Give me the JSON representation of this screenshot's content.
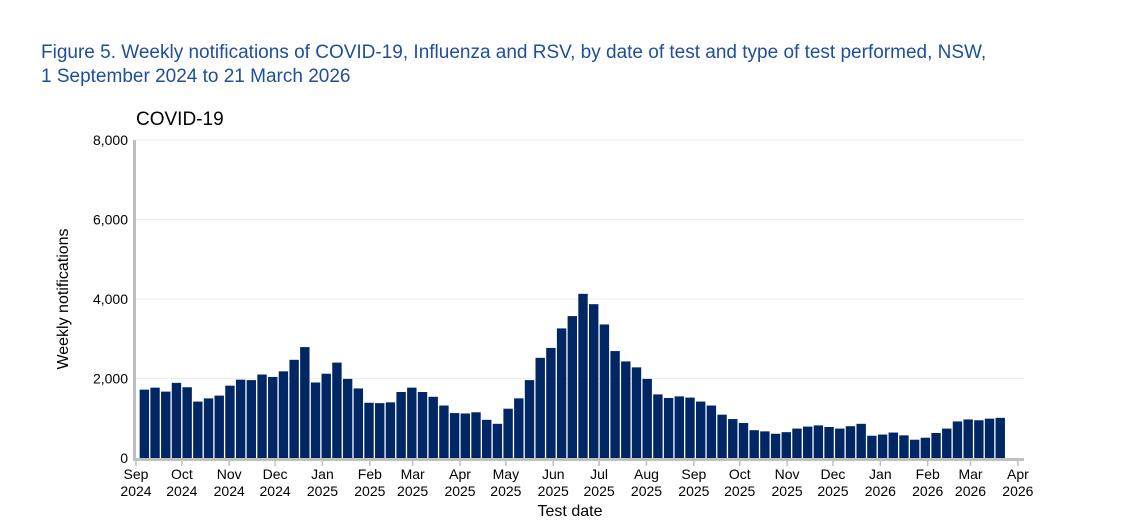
{
  "figure": {
    "title_line1": "Figure 5. Weekly notifications of COVID-19, Influenza and RSV, by date of test and type of test performed, NSW,",
    "title_line2": "1 September 2024 to 21 March 2026"
  },
  "colors": {
    "bar": "#002663",
    "axis": "#bfbfbf",
    "gridline": "#eeeeee",
    "title": "#1f4e9a"
  },
  "chart_data": {
    "type": "bar",
    "title": "COVID-19",
    "xlabel": "Test date",
    "ylabel": "Weekly notifications",
    "ylim": [
      0,
      8000
    ],
    "yticks": [
      0,
      2000,
      4000,
      6000,
      8000
    ],
    "ytick_labels": [
      "0",
      "2,000",
      "4,000",
      "6,000",
      "8,000"
    ],
    "grid": true,
    "legend": "none",
    "x_start_date": "2024-09-01",
    "x_end_date": "2026-04-05",
    "bar_interval": "weekly",
    "x_ticks": [
      {
        "date": "2024-09-01",
        "month": "Sep",
        "year": "2024"
      },
      {
        "date": "2024-10-01",
        "month": "Oct",
        "year": "2024"
      },
      {
        "date": "2024-11-01",
        "month": "Nov",
        "year": "2024"
      },
      {
        "date": "2024-12-01",
        "month": "Dec",
        "year": "2024"
      },
      {
        "date": "2025-01-01",
        "month": "Jan",
        "year": "2025"
      },
      {
        "date": "2025-02-01",
        "month": "Feb",
        "year": "2025"
      },
      {
        "date": "2025-03-01",
        "month": "Mar",
        "year": "2025"
      },
      {
        "date": "2025-04-01",
        "month": "Apr",
        "year": "2025"
      },
      {
        "date": "2025-05-01",
        "month": "May",
        "year": "2025"
      },
      {
        "date": "2025-06-01",
        "month": "Jun",
        "year": "2025"
      },
      {
        "date": "2025-07-01",
        "month": "Jul",
        "year": "2025"
      },
      {
        "date": "2025-08-01",
        "month": "Aug",
        "year": "2025"
      },
      {
        "date": "2025-09-01",
        "month": "Sep",
        "year": "2025"
      },
      {
        "date": "2025-10-01",
        "month": "Oct",
        "year": "2025"
      },
      {
        "date": "2025-11-01",
        "month": "Nov",
        "year": "2025"
      },
      {
        "date": "2025-12-01",
        "month": "Dec",
        "year": "2025"
      },
      {
        "date": "2026-01-01",
        "month": "Jan",
        "year": "2026"
      },
      {
        "date": "2026-02-01",
        "month": "Feb",
        "year": "2026"
      },
      {
        "date": "2026-03-01",
        "month": "Mar",
        "year": "2026"
      },
      {
        "date": "2026-04-01",
        "month": "Apr",
        "year": "2026"
      }
    ],
    "series": [
      {
        "values": [
          1720,
          1770,
          1670,
          1890,
          1780,
          1420,
          1500,
          1570,
          1820,
          1970,
          1960,
          2100,
          2040,
          2180,
          2470,
          2790,
          1900,
          2120,
          2400,
          1990,
          1750,
          1390,
          1380,
          1400,
          1660,
          1770,
          1660,
          1540,
          1320,
          1130,
          1120,
          1150,
          960,
          860,
          1240,
          1500,
          1960,
          2520,
          2770,
          3260,
          3570,
          4130,
          3870,
          3360,
          2690,
          2430,
          2280,
          1990,
          1600,
          1510,
          1550,
          1520,
          1420,
          1320,
          1090,
          980,
          880,
          700,
          670,
          610,
          650,
          740,
          790,
          820,
          780,
          740,
          800,
          860,
          560,
          590,
          640,
          570,
          460,
          510,
          630,
          740,
          920,
          970,
          950,
          990,
          1010
        ]
      }
    ]
  }
}
